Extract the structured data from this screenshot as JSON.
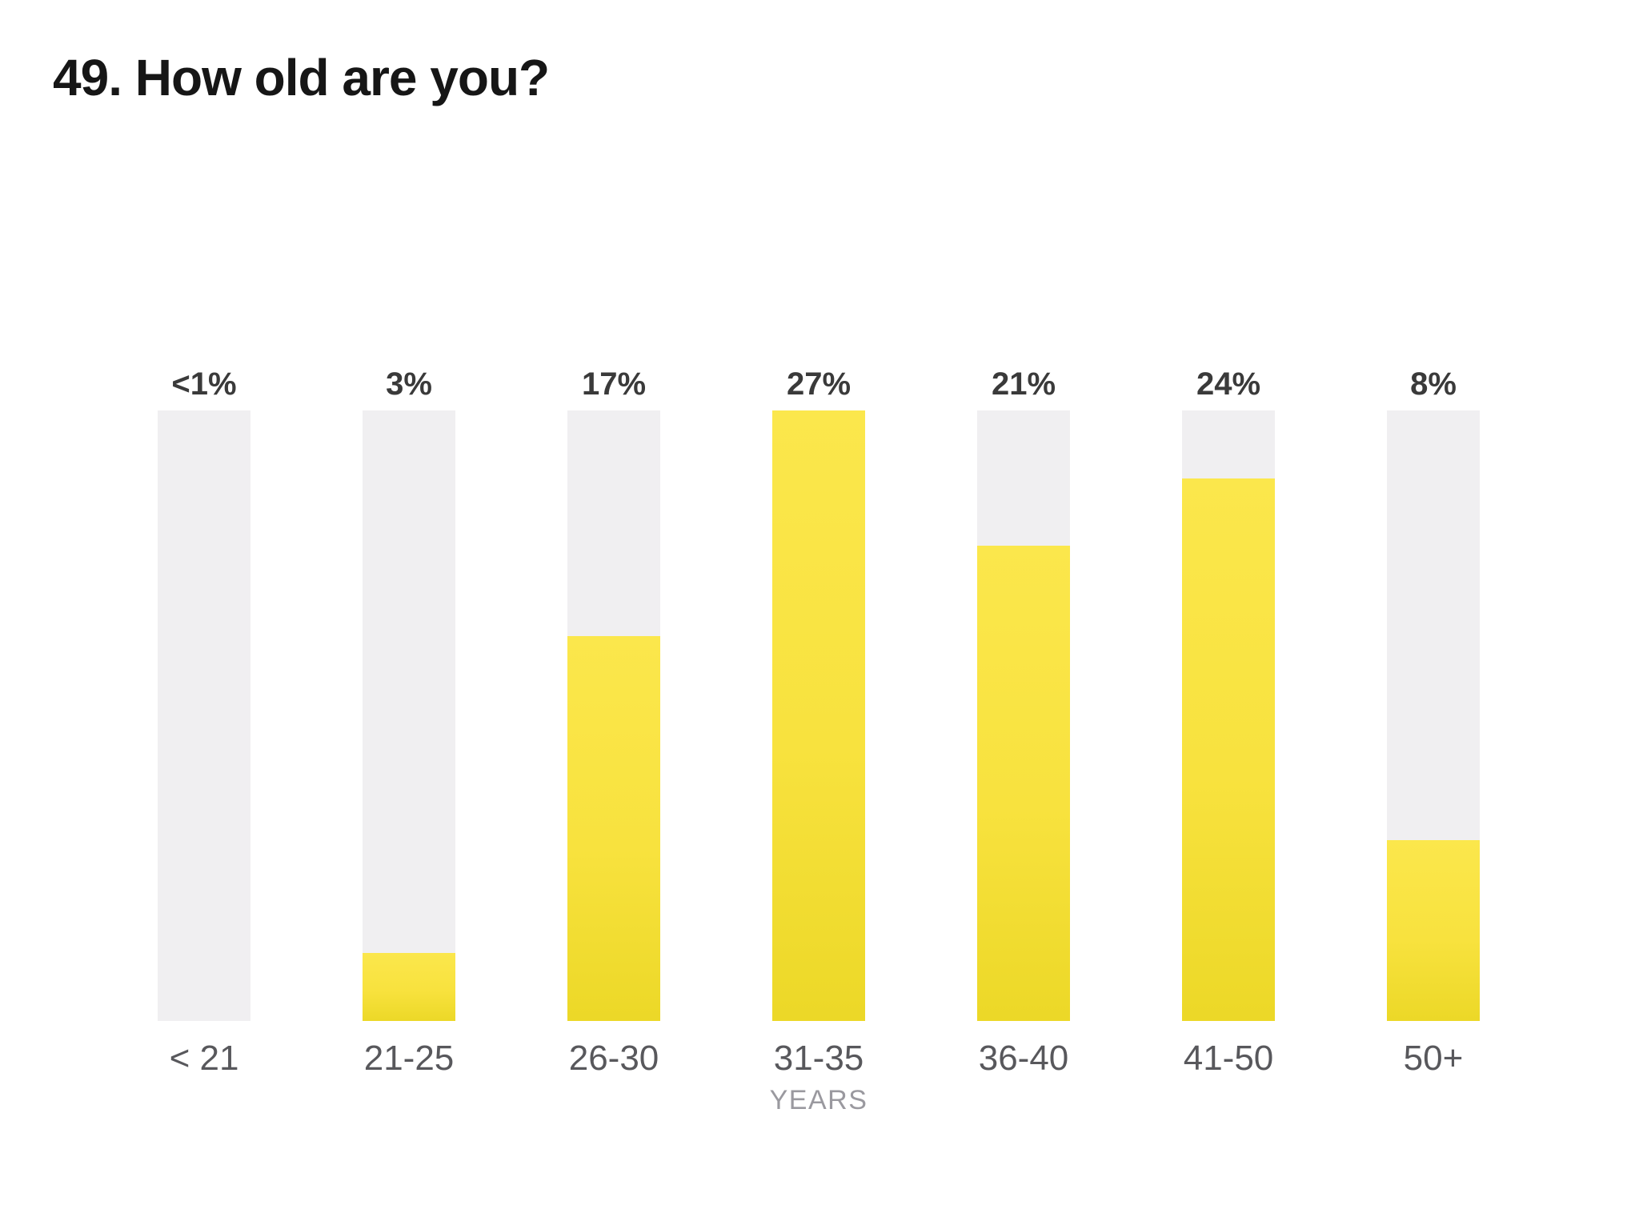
{
  "header": {
    "title": "49. How old are you?"
  },
  "chart_data": {
    "type": "bar",
    "title": "49. How old are you?",
    "categories": [
      "< 21",
      "21-25",
      "26-30",
      "31-35",
      "36-40",
      "41-50",
      "50+"
    ],
    "values": [
      0.5,
      3,
      17,
      27,
      21,
      24,
      8
    ],
    "value_labels": [
      "<1%",
      "3%",
      "17%",
      "27%",
      "21%",
      "24%",
      "8%"
    ],
    "fill_percents": [
      0,
      11.1,
      63,
      100,
      77.8,
      88.9,
      29.6
    ],
    "unit": "%",
    "xlabel": "YEARS",
    "xlabel_under_category": "31-35",
    "ylim": [
      0,
      27
    ],
    "grid": false,
    "legend_position": "none",
    "colors": {
      "fill_top": "#fbe74c",
      "fill_bottom": "#ecd827",
      "track": "#f0eff1",
      "value_label": "#3a3a3a",
      "category_label": "#58585c",
      "unit_label": "#9a999f",
      "title": "#161616",
      "background": "#ffffff"
    }
  }
}
